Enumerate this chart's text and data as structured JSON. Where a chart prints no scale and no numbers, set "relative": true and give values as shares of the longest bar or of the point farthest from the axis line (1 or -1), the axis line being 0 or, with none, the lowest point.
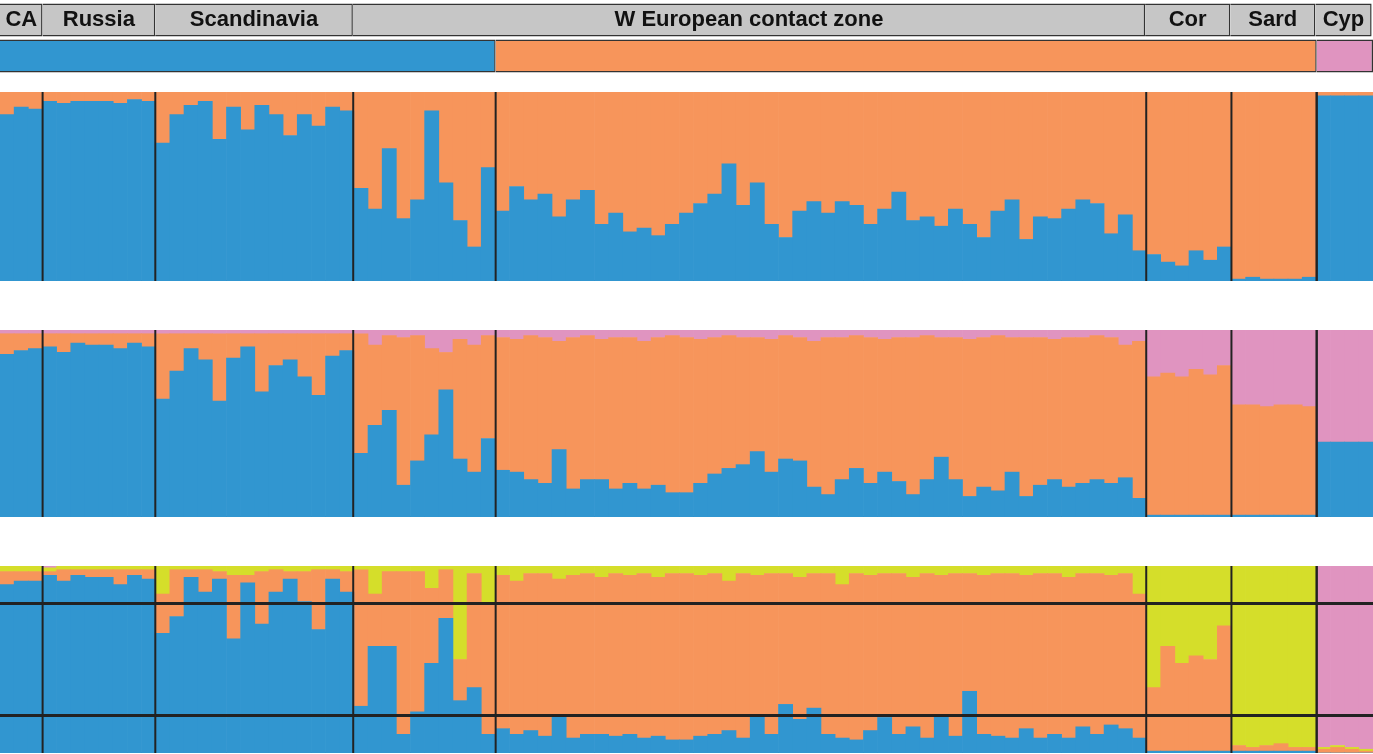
{
  "chart_data": [
    {
      "type": "bar",
      "orientation": "horizontal",
      "stacked": true,
      "relative": true,
      "tick_labels": false,
      "categories": [
        null,
        null
      ],
      "series": [
        {
          "name": "CA",
          "color": "#c6c6c6",
          "values": [
            0.031,
            null
          ]
        },
        {
          "name": "Russia",
          "color": "#c6c6c6",
          "values": [
            0.082,
            null
          ]
        },
        {
          "name": "Scandinavia",
          "color": "#c6c6c6",
          "values": [
            0.144,
            null
          ]
        },
        {
          "name": "W European contact zone",
          "color": "#c6c6c6",
          "values": [
            0.577,
            null
          ]
        },
        {
          "name": "Cor",
          "color": "#c6c6c6",
          "values": [
            0.062,
            null
          ]
        },
        {
          "name": "Sard",
          "color": "#c6c6c6",
          "values": [
            0.062,
            null
          ]
        },
        {
          "name": "Cyp",
          "color": "#c6c6c6",
          "values": [
            0.041,
            null
          ]
        },
        {
          "color": "#3196d0",
          "values": [
            null,
            0.361
          ]
        },
        {
          "color": "#f7955b",
          "values": [
            null,
            0.598
          ]
        },
        {
          "color": "#e094c0",
          "values": [
            null,
            0.041
          ]
        }
      ]
    },
    {
      "type": "bar",
      "stacked": true,
      "relative": true,
      "tick_labels": false,
      "categories": [
        null,
        null,
        null,
        null,
        null,
        null,
        null,
        null,
        null,
        null,
        null,
        null,
        null,
        null,
        null,
        null,
        null,
        null,
        null,
        null,
        null,
        null,
        null,
        null,
        null,
        null,
        null,
        null,
        null,
        null,
        null,
        null,
        null,
        null,
        null,
        null,
        null,
        null,
        null,
        null,
        null,
        null,
        null,
        null,
        null,
        null,
        null,
        null,
        null,
        null,
        null,
        null,
        null,
        null,
        null,
        null,
        null,
        null,
        null,
        null,
        null,
        null,
        null,
        null,
        null,
        null,
        null,
        null,
        null,
        null,
        null,
        null,
        null,
        null,
        null,
        null,
        null,
        null,
        null,
        null,
        null,
        null,
        null,
        null,
        null,
        null,
        null,
        null,
        null,
        null,
        null,
        null,
        null,
        null,
        null,
        null,
        null
      ],
      "series": [
        {
          "color": "#3196d0",
          "values": [
            0.88,
            0.92,
            0.91,
            0.95,
            0.94,
            0.95,
            0.95,
            0.95,
            0.94,
            0.96,
            0.95,
            0.73,
            0.88,
            0.93,
            0.95,
            0.75,
            0.92,
            0.8,
            0.93,
            0.88,
            0.77,
            0.88,
            0.82,
            0.92,
            0.9,
            0.49,
            0.38,
            0.7,
            0.33,
            0.43,
            0.9,
            0.52,
            0.32,
            0.18,
            0.6,
            0.37,
            0.5,
            0.43,
            0.46,
            0.34,
            0.43,
            0.48,
            0.3,
            0.36,
            0.26,
            0.28,
            0.24,
            0.3,
            0.36,
            0.41,
            0.46,
            0.62,
            0.4,
            0.52,
            0.3,
            0.23,
            0.37,
            0.42,
            0.36,
            0.42,
            0.4,
            0.3,
            0.38,
            0.47,
            0.32,
            0.34,
            0.29,
            0.38,
            0.3,
            0.23,
            0.37,
            0.43,
            0.22,
            0.34,
            0.33,
            0.38,
            0.43,
            0.41,
            0.25,
            0.35,
            0.16,
            0.14,
            0.1,
            0.08,
            0.16,
            0.11,
            0.18,
            0.01,
            0.02,
            0.01,
            0.01,
            0.01,
            0.02,
            0.98,
            0.98,
            0.98,
            0.98
          ]
        },
        {
          "color": "#f7955b",
          "values": [
            0.12,
            0.08,
            0.09,
            0.05,
            0.06,
            0.05,
            0.05,
            0.05,
            0.06,
            0.04,
            0.05,
            0.27,
            0.12,
            0.07,
            0.05,
            0.25,
            0.08,
            0.2,
            0.07,
            0.12,
            0.23,
            0.12,
            0.18,
            0.08,
            0.1,
            0.51,
            0.62,
            0.3,
            0.67,
            0.57,
            0.1,
            0.48,
            0.68,
            0.82,
            0.4,
            0.63,
            0.5,
            0.57,
            0.54,
            0.66,
            0.57,
            0.52,
            0.7,
            0.64,
            0.74,
            0.72,
            0.76,
            0.7,
            0.64,
            0.59,
            0.54,
            0.38,
            0.6,
            0.48,
            0.7,
            0.77,
            0.63,
            0.58,
            0.64,
            0.58,
            0.6,
            0.7,
            0.62,
            0.53,
            0.68,
            0.66,
            0.71,
            0.62,
            0.7,
            0.77,
            0.63,
            0.57,
            0.78,
            0.66,
            0.67,
            0.62,
            0.57,
            0.59,
            0.75,
            0.65,
            0.84,
            0.86,
            0.9,
            0.92,
            0.84,
            0.89,
            0.82,
            0.99,
            0.98,
            0.99,
            0.99,
            0.99,
            0.98,
            0.02,
            0.02,
            0.02,
            0.02
          ]
        }
      ]
    },
    {
      "type": "bar",
      "stacked": true,
      "relative": true,
      "tick_labels": false,
      "categories": [
        null,
        null,
        null,
        null,
        null,
        null,
        null,
        null,
        null,
        null,
        null,
        null,
        null,
        null,
        null,
        null,
        null,
        null,
        null,
        null,
        null,
        null,
        null,
        null,
        null,
        null,
        null,
        null,
        null,
        null,
        null,
        null,
        null,
        null,
        null,
        null,
        null,
        null,
        null,
        null,
        null,
        null,
        null,
        null,
        null,
        null,
        null,
        null,
        null,
        null,
        null,
        null,
        null,
        null,
        null,
        null,
        null,
        null,
        null,
        null,
        null,
        null,
        null,
        null,
        null,
        null,
        null,
        null,
        null,
        null,
        null,
        null,
        null,
        null,
        null,
        null,
        null,
        null,
        null,
        null,
        null,
        null,
        null,
        null,
        null,
        null,
        null,
        null,
        null,
        null,
        null,
        null,
        null,
        null,
        null,
        null,
        null
      ],
      "series": [
        {
          "color": "#3196d0",
          "values": [
            0.87,
            0.89,
            0.9,
            0.91,
            0.88,
            0.93,
            0.92,
            0.92,
            0.9,
            0.93,
            0.91,
            0.63,
            0.78,
            0.9,
            0.84,
            0.62,
            0.85,
            0.91,
            0.67,
            0.81,
            0.84,
            0.75,
            0.65,
            0.86,
            0.89,
            0.34,
            0.49,
            0.57,
            0.17,
            0.3,
            0.44,
            0.68,
            0.31,
            0.24,
            0.42,
            0.25,
            0.24,
            0.2,
            0.18,
            0.36,
            0.15,
            0.2,
            0.2,
            0.15,
            0.18,
            0.15,
            0.17,
            0.13,
            0.13,
            0.18,
            0.23,
            0.26,
            0.28,
            0.35,
            0.24,
            0.31,
            0.3,
            0.16,
            0.12,
            0.2,
            0.26,
            0.18,
            0.24,
            0.19,
            0.12,
            0.2,
            0.32,
            0.2,
            0.11,
            0.16,
            0.14,
            0.24,
            0.11,
            0.17,
            0.2,
            0.16,
            0.18,
            0.2,
            0.18,
            0.21,
            0.1,
            0.01,
            0.01,
            0.01,
            0.01,
            0.01,
            0.01,
            0.01,
            0.01,
            0.01,
            0.01,
            0.01,
            0.01,
            0.4,
            0.4,
            0.4,
            0.4
          ]
        },
        {
          "color": "#f7955b",
          "values": [
            0.11,
            0.09,
            0.08,
            0.07,
            0.1,
            0.05,
            0.06,
            0.06,
            0.08,
            0.05,
            0.07,
            0.35,
            0.2,
            0.08,
            0.14,
            0.36,
            0.13,
            0.07,
            0.31,
            0.17,
            0.14,
            0.23,
            0.33,
            0.12,
            0.09,
            0.64,
            0.43,
            0.4,
            0.79,
            0.67,
            0.46,
            0.2,
            0.64,
            0.68,
            0.55,
            0.71,
            0.71,
            0.77,
            0.78,
            0.58,
            0.81,
            0.77,
            0.75,
            0.81,
            0.78,
            0.79,
            0.79,
            0.84,
            0.83,
            0.77,
            0.73,
            0.71,
            0.68,
            0.61,
            0.71,
            0.66,
            0.66,
            0.78,
            0.84,
            0.76,
            0.71,
            0.78,
            0.71,
            0.77,
            0.84,
            0.77,
            0.64,
            0.76,
            0.84,
            0.8,
            0.83,
            0.72,
            0.85,
            0.79,
            0.75,
            0.8,
            0.78,
            0.77,
            0.78,
            0.71,
            0.84,
            0.74,
            0.76,
            0.74,
            0.78,
            0.75,
            0.8,
            0.59,
            0.59,
            0.58,
            0.59,
            0.59,
            0.58,
            0,
            0,
            0,
            0
          ]
        },
        {
          "color": "#e094c0",
          "values": [
            0.02,
            0.02,
            0.02,
            0.02,
            0.02,
            0.02,
            0.02,
            0.02,
            0.02,
            0.02,
            0.02,
            0.02,
            0.02,
            0.02,
            0.02,
            0.02,
            0.02,
            0.02,
            0.02,
            0.02,
            0.02,
            0.02,
            0.02,
            0.02,
            0.02,
            0.02,
            0.08,
            0.03,
            0.04,
            0.03,
            0.1,
            0.12,
            0.05,
            0.08,
            0.03,
            0.04,
            0.05,
            0.03,
            0.04,
            0.06,
            0.04,
            0.03,
            0.05,
            0.04,
            0.04,
            0.06,
            0.04,
            0.03,
            0.04,
            0.05,
            0.04,
            0.03,
            0.04,
            0.04,
            0.05,
            0.03,
            0.04,
            0.06,
            0.04,
            0.04,
            0.03,
            0.04,
            0.05,
            0.04,
            0.04,
            0.03,
            0.04,
            0.04,
            0.05,
            0.04,
            0.03,
            0.04,
            0.04,
            0.04,
            0.05,
            0.04,
            0.04,
            0.03,
            0.04,
            0.08,
            0.06,
            0.25,
            0.23,
            0.25,
            0.21,
            0.24,
            0.19,
            0.4,
            0.4,
            0.41,
            0.4,
            0.4,
            0.41,
            0.6,
            0.6,
            0.6,
            0.6
          ]
        }
      ]
    },
    {
      "type": "bar",
      "stacked": true,
      "relative": true,
      "tick_labels": false,
      "categories": [
        null,
        null,
        null,
        null,
        null,
        null,
        null,
        null,
        null,
        null,
        null,
        null,
        null,
        null,
        null,
        null,
        null,
        null,
        null,
        null,
        null,
        null,
        null,
        null,
        null,
        null,
        null,
        null,
        null,
        null,
        null,
        null,
        null,
        null,
        null,
        null,
        null,
        null,
        null,
        null,
        null,
        null,
        null,
        null,
        null,
        null,
        null,
        null,
        null,
        null,
        null,
        null,
        null,
        null,
        null,
        null,
        null,
        null,
        null,
        null,
        null,
        null,
        null,
        null,
        null,
        null,
        null,
        null,
        null,
        null,
        null,
        null,
        null,
        null,
        null,
        null,
        null,
        null,
        null,
        null,
        null,
        null,
        null,
        null,
        null,
        null,
        null,
        null,
        null,
        null,
        null,
        null,
        null,
        null,
        null,
        null,
        null
      ],
      "ref_lines": [
        {
          "axis": "y",
          "value": 0.8
        },
        {
          "axis": "y",
          "value": 0.2
        }
      ],
      "series": [
        {
          "color": "#3196d0",
          "values": [
            0.9,
            0.92,
            0.92,
            0.95,
            0.92,
            0.95,
            0.94,
            0.94,
            0.9,
            0.95,
            0.93,
            0.64,
            0.73,
            0.94,
            0.86,
            0.93,
            0.61,
            0.91,
            0.69,
            0.86,
            0.93,
            0.81,
            0.66,
            0.93,
            0.86,
            0.25,
            0.57,
            0.57,
            0.1,
            0.22,
            0.48,
            0.72,
            0.28,
            0.35,
            0.1,
            0.13,
            0.1,
            0.12,
            0.09,
            0.2,
            0.08,
            0.1,
            0.1,
            0.09,
            0.1,
            0.08,
            0.09,
            0.07,
            0.07,
            0.09,
            0.1,
            0.12,
            0.08,
            0.2,
            0.1,
            0.26,
            0.18,
            0.24,
            0.1,
            0.08,
            0.07,
            0.12,
            0.19,
            0.1,
            0.14,
            0.08,
            0.2,
            0.09,
            0.33,
            0.1,
            0.09,
            0.08,
            0.13,
            0.08,
            0.1,
            0.08,
            0.14,
            0.1,
            0.15,
            0.13,
            0.08,
            0.01,
            0.01,
            0.01,
            0.01,
            0.01,
            0.01,
            0.01,
            0.01,
            0.01,
            0.01,
            0.01,
            0.01,
            0,
            0,
            0,
            0
          ]
        },
        {
          "color": "#f7955b",
          "values": [
            0.07,
            0.05,
            0.05,
            0.02,
            0.06,
            0.03,
            0.04,
            0.04,
            0.08,
            0.03,
            0.05,
            0.21,
            0.25,
            0.04,
            0.12,
            0.04,
            0.34,
            0.04,
            0.28,
            0.12,
            0.04,
            0.16,
            0.32,
            0.05,
            0.11,
            0.73,
            0.28,
            0.4,
            0.87,
            0.75,
            0.4,
            0.26,
            0.22,
            0.61,
            0.7,
            0.82,
            0.82,
            0.84,
            0.87,
            0.73,
            0.87,
            0.86,
            0.84,
            0.87,
            0.85,
            0.88,
            0.85,
            0.89,
            0.89,
            0.86,
            0.86,
            0.8,
            0.88,
            0.75,
            0.86,
            0.7,
            0.76,
            0.72,
            0.86,
            0.82,
            0.89,
            0.83,
            0.77,
            0.86,
            0.8,
            0.88,
            0.75,
            0.87,
            0.63,
            0.85,
            0.87,
            0.88,
            0.82,
            0.88,
            0.86,
            0.86,
            0.82,
            0.86,
            0.8,
            0.83,
            0.77,
            0.34,
            0.56,
            0.47,
            0.51,
            0.49,
            0.67,
            0.03,
            0.02,
            0.03,
            0.04,
            0.02,
            0.02,
            0.02,
            0.03,
            0.02,
            0.01
          ]
        },
        {
          "color": "#d5de2a",
          "values": [
            0.03,
            0.03,
            0.03,
            0.02,
            0.02,
            0.02,
            0.02,
            0.02,
            0.02,
            0.02,
            0.02,
            0.15,
            0.02,
            0.02,
            0.02,
            0.03,
            0.05,
            0.05,
            0.03,
            0.02,
            0.03,
            0.03,
            0.02,
            0.02,
            0.03,
            0.02,
            0.15,
            0.03,
            0.03,
            0.03,
            0.12,
            0.02,
            0.5,
            0.04,
            0.2,
            0.05,
            0.08,
            0.04,
            0.04,
            0.07,
            0.05,
            0.04,
            0.06,
            0.04,
            0.05,
            0.04,
            0.06,
            0.04,
            0.04,
            0.05,
            0.04,
            0.08,
            0.04,
            0.05,
            0.04,
            0.04,
            0.06,
            0.04,
            0.04,
            0.1,
            0.04,
            0.05,
            0.04,
            0.04,
            0.06,
            0.04,
            0.05,
            0.04,
            0.04,
            0.05,
            0.04,
            0.04,
            0.05,
            0.04,
            0.04,
            0.06,
            0.04,
            0.04,
            0.05,
            0.04,
            0.15,
            0.65,
            0.43,
            0.52,
            0.48,
            0.5,
            0.32,
            0.96,
            0.97,
            0.96,
            0.95,
            0.97,
            0.97,
            0.01,
            0.01,
            0.01,
            0.01
          ]
        },
        {
          "color": "#e094c0",
          "values": [
            0,
            0,
            0,
            0.01,
            0,
            0,
            0,
            0,
            0,
            0,
            0,
            0,
            0,
            0,
            0,
            0,
            0,
            0,
            0,
            0,
            0,
            0,
            0,
            0,
            0,
            0,
            0,
            0,
            0,
            0,
            0,
            0,
            0,
            0,
            0,
            0,
            0,
            0,
            0,
            0,
            0,
            0,
            0,
            0,
            0,
            0,
            0,
            0,
            0,
            0,
            0,
            0,
            0,
            0,
            0,
            0,
            0,
            0,
            0,
            0,
            0,
            0,
            0,
            0,
            0,
            0,
            0,
            0,
            0,
            0,
            0,
            0,
            0,
            0,
            0,
            0,
            0,
            0,
            0,
            0,
            0,
            0,
            0,
            0,
            0,
            0,
            0,
            0,
            0,
            0,
            0,
            0,
            0,
            0.97,
            0.96,
            0.97,
            0.98
          ]
        }
      ]
    }
  ]
}
